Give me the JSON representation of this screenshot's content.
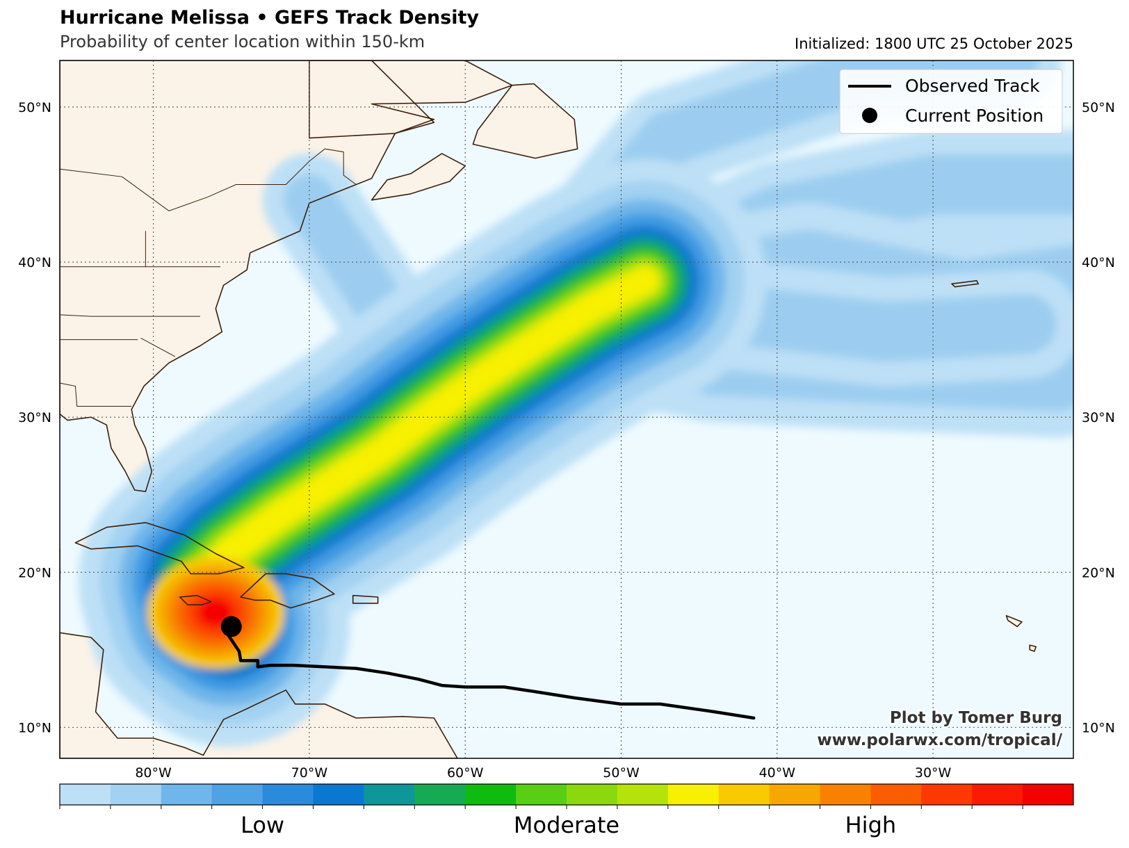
{
  "header": {
    "title": "Hurricane Melissa • GEFS Track Density",
    "subtitle": "Probability of center location within 150-km",
    "initialized": "Initialized: 1800 UTC 25 October 2025"
  },
  "map": {
    "lon_range": [
      -86,
      -21
    ],
    "lat_range": [
      8,
      53
    ],
    "lon_ticks": [
      {
        "lon": -80,
        "label": "80°W"
      },
      {
        "lon": -70,
        "label": "70°W"
      },
      {
        "lon": -60,
        "label": "60°W"
      },
      {
        "lon": -50,
        "label": "50°W"
      },
      {
        "lon": -40,
        "label": "40°W"
      },
      {
        "lon": -30,
        "label": "30°W"
      }
    ],
    "lat_ticks": [
      {
        "lat": 10,
        "label": "10°N"
      },
      {
        "lat": 20,
        "label": "20°N"
      },
      {
        "lat": 30,
        "label": "30°N"
      },
      {
        "lat": 40,
        "label": "40°N"
      },
      {
        "lat": 50,
        "label": "50°N"
      }
    ],
    "ocean_color": "#eefaff",
    "land_color": "#fbf3e8",
    "coast_color": "#3d1e0a"
  },
  "legend": {
    "observed_track_label": "Observed Track",
    "current_position_label": "Current Position"
  },
  "observed_track": [
    [
      -41.5,
      10.6
    ],
    [
      -44,
      11.0
    ],
    [
      -47.5,
      11.5
    ],
    [
      -50,
      11.5
    ],
    [
      -53,
      11.9
    ],
    [
      -55.5,
      12.3
    ],
    [
      -57.5,
      12.6
    ],
    [
      -60,
      12.6
    ],
    [
      -61.5,
      12.7
    ],
    [
      -63,
      13.1
    ],
    [
      -65,
      13.5
    ],
    [
      -67,
      13.8
    ],
    [
      -69,
      13.9
    ],
    [
      -71,
      14.0
    ],
    [
      -72.5,
      14.0
    ],
    [
      -73.3,
      13.9
    ],
    [
      -73.3,
      14.3
    ],
    [
      -74.4,
      14.3
    ],
    [
      -74.5,
      14.9
    ],
    [
      -75.3,
      16.1
    ]
  ],
  "current_position": [
    -75.0,
    16.5
  ],
  "density_levels": [
    {
      "color": "#bde0f6",
      "width_deg": 7.8
    },
    {
      "color": "#a2d1f2",
      "width_deg": 6.4
    },
    {
      "color": "#6fb6ea",
      "width_deg": 5.2
    },
    {
      "color": "#3f9ae2",
      "width_deg": 4.3
    },
    {
      "color": "#0b78d0",
      "width_deg": 3.5
    },
    {
      "color": "#0f9698",
      "width_deg": 2.9
    },
    {
      "color": "#18b04a",
      "width_deg": 2.4
    },
    {
      "color": "#58ce14",
      "width_deg": 1.9
    },
    {
      "color": "#b5e20a",
      "width_deg": 1.4
    },
    {
      "color": "#f7f000",
      "width_deg": 0.9
    }
  ],
  "main_density_path": [
    [
      -75.2,
      16.6
    ],
    [
      -76.5,
      17.6
    ],
    [
      -77.0,
      19.4
    ],
    [
      -75.0,
      21.4
    ],
    [
      -72.0,
      23.6
    ],
    [
      -69.0,
      25.5
    ],
    [
      -65.5,
      27.7
    ],
    [
      -62.5,
      30.0
    ],
    [
      -59.0,
      32.5
    ],
    [
      -55.5,
      34.8
    ],
    [
      -52.0,
      37.0
    ],
    [
      -48.5,
      38.8
    ]
  ],
  "colorbar": {
    "colors": [
      "#bde0f6",
      "#a2d1f2",
      "#6fb6ea",
      "#4fa2e4",
      "#2a8bdb",
      "#0b78d0",
      "#0f9698",
      "#16aa55",
      "#10bb10",
      "#58ce14",
      "#8bd80f",
      "#b5e20a",
      "#f7f000",
      "#f7cb00",
      "#f7a800",
      "#f88200",
      "#fa5d00",
      "#fc3a00",
      "#fa1a00",
      "#f50000"
    ],
    "labels": [
      {
        "text": "Low",
        "position": 0.2
      },
      {
        "text": "Moderate",
        "position": 0.5
      },
      {
        "text": "High",
        "position": 0.8
      }
    ]
  },
  "credit": {
    "line1": "Plot by Tomer Burg",
    "line2": "www.polarwx.com/tropical/"
  }
}
